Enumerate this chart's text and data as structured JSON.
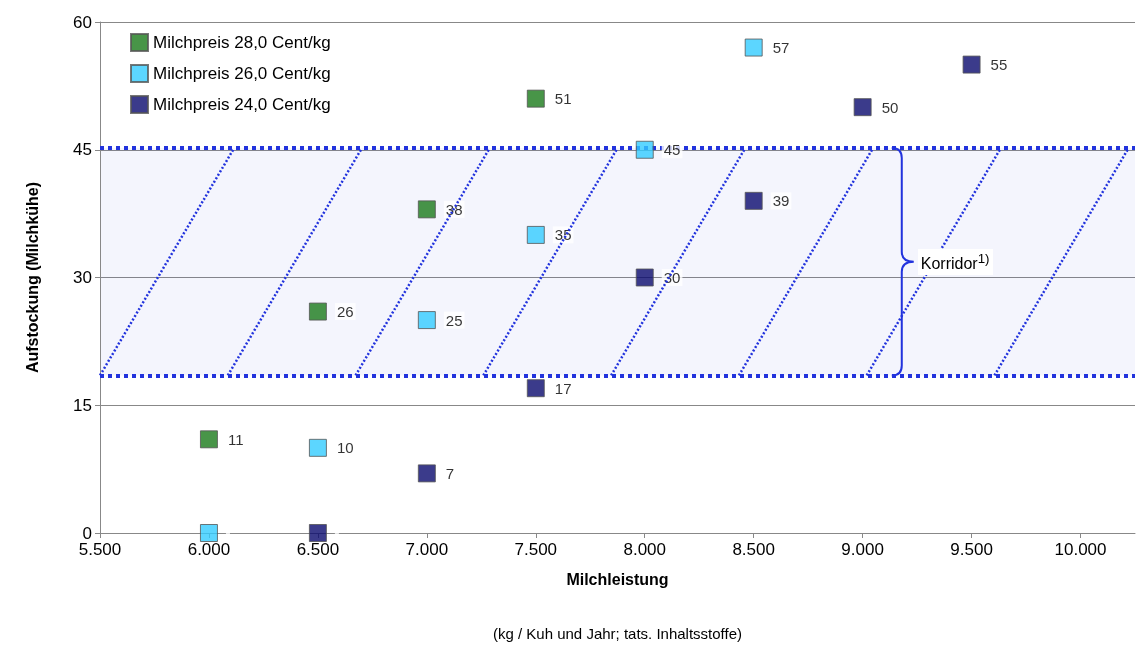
{
  "chart_data": {
    "type": "scatter",
    "xlabel": "Milchleistung",
    "ylabel": "Aufstockung (Milchkühe)",
    "annotations": [
      "(kg / Kuh und Jahr; tats. Inhaltsstoffe)"
    ],
    "xlim": [
      5500,
      10250
    ],
    "xticks": [
      {
        "value": 5500,
        "label": "5.500"
      },
      {
        "value": 6000,
        "label": "6.000"
      },
      {
        "value": 6500,
        "label": "6.500"
      },
      {
        "value": 7000,
        "label": "7.000"
      },
      {
        "value": 7500,
        "label": "7.500"
      },
      {
        "value": 8000,
        "label": "8.000"
      },
      {
        "value": 8500,
        "label": "8.500"
      },
      {
        "value": 9000,
        "label": "9.000"
      },
      {
        "value": 9500,
        "label": "9.500"
      },
      {
        "value": 10000,
        "label": "10.000"
      }
    ],
    "ylim": [
      0,
      60
    ],
    "yticks": [
      0,
      15,
      30,
      45,
      60
    ],
    "grid": "y",
    "legend": "top left",
    "marker": "square",
    "series": [
      {
        "name": "Milchpreis 28,0 Cent/kg",
        "color": "#1a7a1a",
        "x": [
          6000,
          6500,
          7000,
          7500
        ],
        "values": [
          11,
          26,
          38,
          51
        ],
        "value_labels": [
          "11",
          "26",
          "38",
          "51"
        ]
      },
      {
        "name": "Milchpreis 26,0 Cent/kg",
        "color": "#33ccff",
        "x": [
          6000,
          6500,
          7000,
          7500,
          8000,
          8500
        ],
        "values": [
          0,
          10,
          25,
          35,
          45,
          57
        ],
        "value_labels": [
          null,
          "10",
          "25",
          "35",
          "45",
          "57"
        ]
      },
      {
        "name": "Milchpreis 24,0 Cent/kg",
        "color": "#0a0a6e",
        "x": [
          6500,
          7000,
          7500,
          8000,
          8500,
          9000,
          9500
        ],
        "values": [
          0,
          7,
          17,
          30,
          39,
          50,
          55
        ],
        "value_labels": [
          null,
          "7",
          "17",
          "30",
          "39",
          "50",
          "55"
        ]
      }
    ],
    "ref_lines": [
      {
        "axis": "y",
        "value": 45.2,
        "color": "#2233dd",
        "line_style": "dotted"
      },
      {
        "axis": "y",
        "value": 18.5,
        "color": "#2233dd",
        "line_style": "dotted"
      }
    ],
    "bands": [
      {
        "axis": "y",
        "from": 18.5,
        "to": 45.2,
        "label": "Korridor$^{1)}$",
        "color": "#2233dd"
      }
    ]
  }
}
